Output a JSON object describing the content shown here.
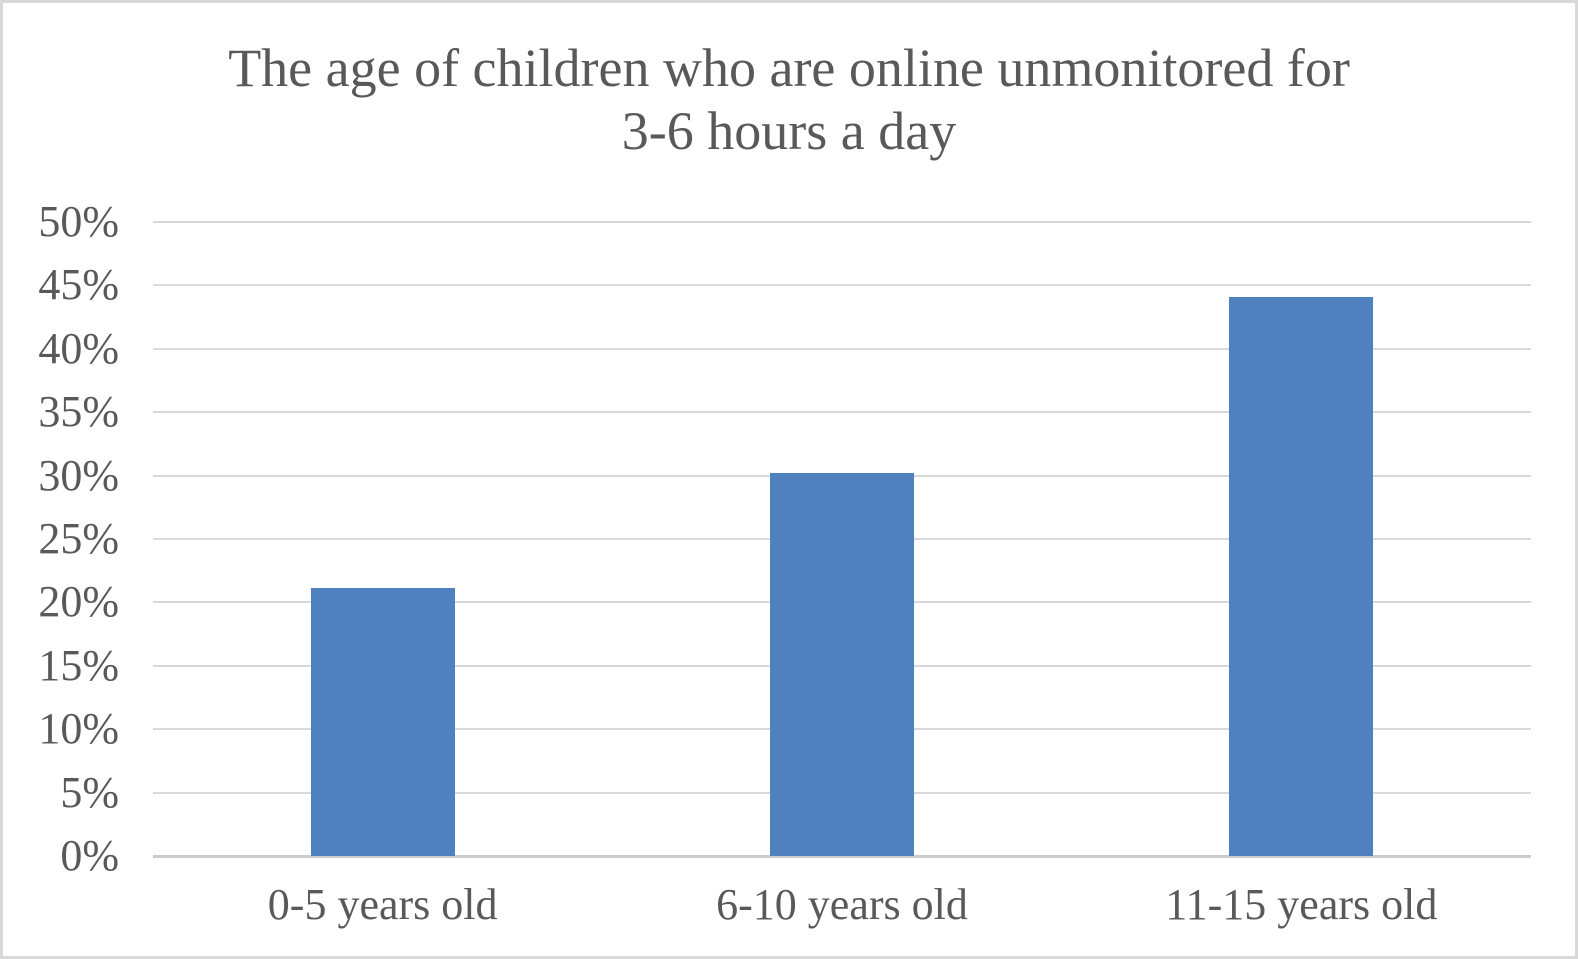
{
  "frame": {
    "background_color": "#ffffff",
    "border_color": "#d9d9d9"
  },
  "chart_data": {
    "type": "bar",
    "title": "The age of children who are online unmonitored for 3-6 hours a day",
    "title_lines": [
      "The age of children who are online unmonitored for",
      "3-6 hours a day"
    ],
    "categories": [
      "0-5 years old",
      "6-10 years old",
      "11-15 years old"
    ],
    "values": [
      21.1,
      30.2,
      44.1
    ],
    "value_unit": "%",
    "ylim": [
      0,
      50
    ],
    "ytick_step": 5,
    "yticks": [
      "0%",
      "5%",
      "10%",
      "15%",
      "20%",
      "25%",
      "30%",
      "35%",
      "40%",
      "45%",
      "50%"
    ],
    "grid": "horizontal",
    "legend": "none",
    "bar_color": "#4e81bd",
    "title_color": "#595959",
    "tick_label_color": "#595959",
    "gridline_color": "#d9d9d9",
    "axis_line_color": "#cccccc"
  }
}
